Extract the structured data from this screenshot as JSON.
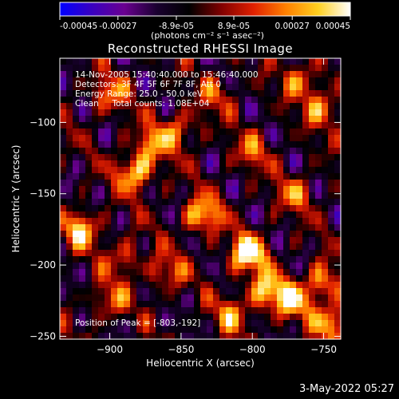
{
  "colorbar": {
    "ticks": [
      "-0.00045",
      "-0.00027",
      "-8.9e-05",
      "8.9e-05",
      "0.00027",
      "0.00045"
    ],
    "unit_label": "(photons cm⁻² s⁻¹ asec⁻²)",
    "range": [
      -0.00045,
      0.00045
    ],
    "colormap": [
      "#0000ff",
      "#3a00c0",
      "#6a0090",
      "#1a0030",
      "#000000",
      "#800000",
      "#e02000",
      "#ff8000",
      "#ffd020",
      "#ffffff"
    ]
  },
  "chart_data": {
    "type": "heatmap",
    "title": "Reconstructed RHESSI Image",
    "xlabel": "Heliocentric X (arcsec)",
    "ylabel": "Heliocentric Y (arcsec)",
    "xlim": [
      -935,
      -738
    ],
    "ylim": [
      -252,
      -55
    ],
    "x_ticks": [
      -900,
      -850,
      -800,
      -750
    ],
    "x_tick_labels": [
      "−900",
      "−850",
      "−800",
      "−750"
    ],
    "y_ticks": [
      -100,
      -150,
      -200,
      -250
    ],
    "y_tick_labels": [
      "−100",
      "−150",
      "−200",
      "−250"
    ],
    "annotations": [
      "14-Nov-2005 15:40:40.000 to 15:46:40.000",
      "Detectors: 3F 4F 5F 6F 7F 8F, Att 0",
      "Energy Range: 25.0 - 50.0 keV",
      "Clean     Total counts: 1.08E+04"
    ],
    "peak_label": "Position of Peak = [-803,-192]",
    "peak": [
      -803,
      -192
    ],
    "sources": [
      {
        "x": -803,
        "y": -192,
        "intensity": 1.0
      },
      {
        "x": -882,
        "y": -135,
        "intensity": 0.82
      },
      {
        "x": -835,
        "y": -165,
        "intensity": 0.8
      },
      {
        "x": -870,
        "y": -115,
        "intensity": 0.6
      },
      {
        "x": -920,
        "y": -175,
        "intensity": 0.75
      },
      {
        "x": -790,
        "y": -218,
        "intensity": 0.78
      },
      {
        "x": -772,
        "y": -225,
        "intensity": 0.72
      },
      {
        "x": -750,
        "y": -212,
        "intensity": 0.65
      },
      {
        "x": -745,
        "y": -240,
        "intensity": 0.7
      },
      {
        "x": -900,
        "y": -80,
        "intensity": 0.55
      },
      {
        "x": -750,
        "y": -90,
        "intensity": 0.6
      },
      {
        "x": -765,
        "y": -70,
        "intensity": 0.55
      },
      {
        "x": -850,
        "y": -105,
        "intensity": 0.5
      },
      {
        "x": -800,
        "y": -120,
        "intensity": 0.45
      },
      {
        "x": -860,
        "y": -205,
        "intensity": 0.5
      },
      {
        "x": -900,
        "y": -225,
        "intensity": 0.5
      },
      {
        "x": -815,
        "y": -235,
        "intensity": 0.55
      },
      {
        "x": -770,
        "y": -150,
        "intensity": 0.5
      },
      {
        "x": -890,
        "y": -195,
        "intensity": 0.45
      },
      {
        "x": -825,
        "y": -80,
        "intensity": 0.4
      }
    ]
  },
  "footer": {
    "timestamp": "3-May-2022 05:27"
  }
}
